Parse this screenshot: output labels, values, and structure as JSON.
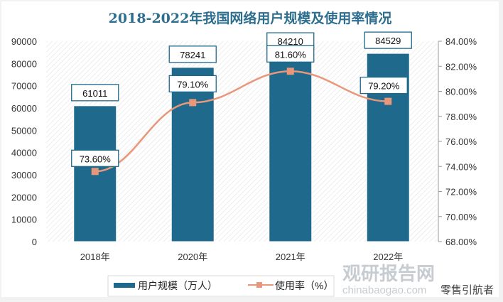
{
  "chart_data": {
    "type": "bar",
    "title": "2018-2022年我国网络用户规模及使用率情况",
    "categories": [
      "2018年",
      "2020年",
      "2021年",
      "2022年"
    ],
    "series": [
      {
        "name": "用户规模（万人）",
        "type": "bar",
        "axis": "left",
        "values": [
          61011,
          78241,
          84210,
          84529
        ],
        "labels": [
          "61011",
          "78241",
          "84210",
          "84529"
        ],
        "color": "#1f6a8c"
      },
      {
        "name": "使用率（%）",
        "type": "line",
        "axis": "right",
        "values": [
          73.6,
          79.1,
          81.6,
          79.2
        ],
        "labels": [
          "73.60%",
          "79.10%",
          "81.60%",
          "79.20%"
        ],
        "color": "#e8977a"
      }
    ],
    "y_left": {
      "min": 0,
      "max": 90000,
      "ticks": [
        "0",
        "10000",
        "20000",
        "30000",
        "40000",
        "50000",
        "60000",
        "70000",
        "80000",
        "90000"
      ]
    },
    "y_right": {
      "min": 68,
      "max": 84,
      "ticks": [
        "68.00%",
        "70.00%",
        "72.00%",
        "74.00%",
        "76.00%",
        "78.00%",
        "80.00%",
        "82.00%",
        "84.00%"
      ]
    },
    "legend_position": "bottom"
  },
  "watermark": {
    "brand": "观研报告网",
    "url": "chinabaogao.com",
    "account": "零售引航者"
  }
}
